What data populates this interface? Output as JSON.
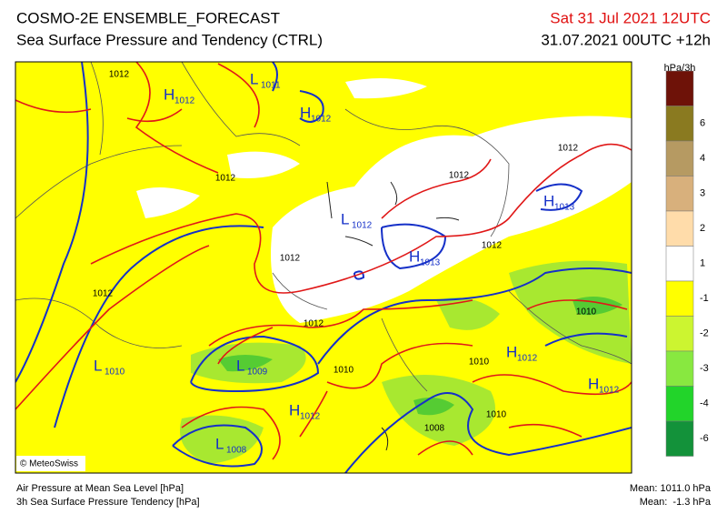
{
  "header": {
    "title": "COSMO-2E ENSEMBLE_FORECAST",
    "subtitle": "Sea Surface Pressure and Tendency (CTRL)",
    "valid_time": "Sat 31 Jul 2021 12UTC",
    "run_time": "31.07.2021 00UTC +12h"
  },
  "colorbar": {
    "unit": "hPa/3h",
    "colors": [
      "#6e1208",
      "#8a7a20",
      "#b69a62",
      "#d8b07c",
      "#ffdcaa",
      "#ffffff",
      "#ffff00",
      "#ccf530",
      "#88e840",
      "#22d42a",
      "#13923a"
    ],
    "labels": [
      6,
      4,
      3,
      2,
      1,
      -1,
      -2,
      -3,
      -4,
      -6
    ]
  },
  "map": {
    "centers": [
      {
        "symbol": "H",
        "value": 1012
      },
      {
        "symbol": "L",
        "value": 1011
      },
      {
        "symbol": "H",
        "value": 1012
      },
      {
        "symbol": "L",
        "value": 1012
      },
      {
        "symbol": "H",
        "value": 1013
      },
      {
        "symbol": "H",
        "value": 1013
      },
      {
        "symbol": "L",
        "value": 1010
      },
      {
        "symbol": "L",
        "value": 1009
      },
      {
        "symbol": "H",
        "value": 1012
      },
      {
        "symbol": "L",
        "value": 1008
      },
      {
        "symbol": "H",
        "value": 1012
      },
      {
        "symbol": "H",
        "value": 1012
      }
    ],
    "isobar_labels": [
      1012,
      1012,
      1012,
      1012,
      1012,
      1012,
      1012,
      1012,
      1010,
      1010,
      1010,
      1010,
      1008
    ],
    "copyright": "© MeteoSwiss"
  },
  "footer": {
    "legend": [
      "Air Pressure at Mean Sea Level [hPa]",
      "3h Sea Surface Pressure Tendency [hPa]"
    ],
    "mean_pressure": "Mean: 1011.0 hPa",
    "mean_tendency": "Mean:  -1.3 hPa"
  }
}
